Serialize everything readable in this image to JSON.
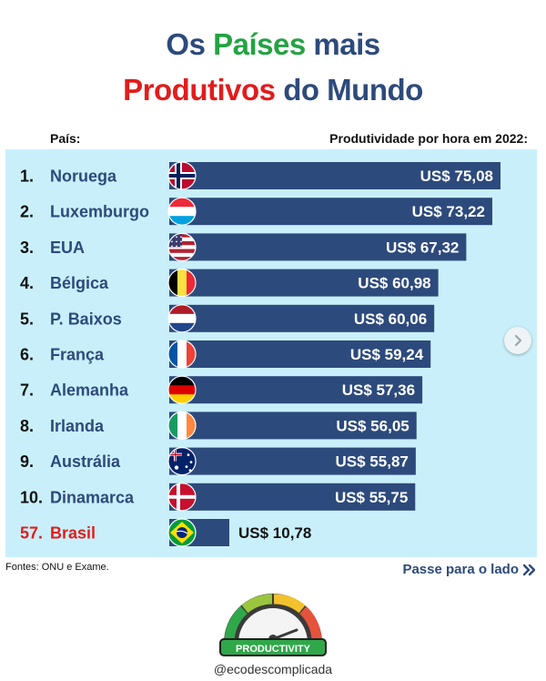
{
  "title": {
    "line1_part1": "Os ",
    "line1_part2": "Países",
    "line1_part3": " mais",
    "line2_part1": "Produtivos",
    "line2_part2": " do Mundo"
  },
  "header": {
    "country_label": "País:",
    "value_label": "Produtividade por hora em 2022:"
  },
  "chart_data": {
    "type": "bar",
    "orientation": "horizontal",
    "categories": [
      "Noruega",
      "Luxemburgo",
      "EUA",
      "Bélgica",
      "P. Baixos",
      "França",
      "Alemanha",
      "Irlanda",
      "Austrália",
      "Dinamarca",
      "Brasil"
    ],
    "ranks": [
      "1.",
      "2.",
      "3.",
      "4.",
      "5.",
      "6.",
      "7.",
      "8.",
      "9.",
      "10.",
      "57."
    ],
    "values": [
      75.08,
      73.22,
      67.32,
      60.98,
      60.06,
      59.24,
      57.36,
      56.05,
      55.87,
      55.75,
      10.78
    ],
    "value_labels": [
      "US$ 75,08",
      "US$ 73,22",
      "US$ 67,32",
      "US$ 60,98",
      "US$ 60,06",
      "US$ 59,24",
      "US$ 57,36",
      "US$ 56,05",
      "US$ 55,87",
      "US$ 55,75",
      "US$ 10,78"
    ],
    "flags": [
      "norway-flag-icon",
      "luxembourg-flag-icon",
      "usa-flag-icon",
      "belgium-flag-icon",
      "netherlands-flag-icon",
      "france-flag-icon",
      "germany-flag-icon",
      "ireland-flag-icon",
      "australia-flag-icon",
      "denmark-flag-icon",
      "brazil-flag-icon"
    ],
    "highlight": "Brasil",
    "bar_color": "#2d4a7c",
    "highlight_color": "#e21c1c",
    "label_color": "#2d4a7c",
    "value_label_color": "#ffffff"
  },
  "footer": {
    "sources": "Fontes: ONU e Exame.",
    "swipe_hint": "Passe para o lado",
    "logo_text": "PRODUCTIVITY",
    "handle": "@ecodescomplicada"
  },
  "colors": {
    "navy": "#2d4a7c",
    "green": "#23a343",
    "red": "#e21c1c",
    "panel_bg": "#c9f0fa"
  }
}
